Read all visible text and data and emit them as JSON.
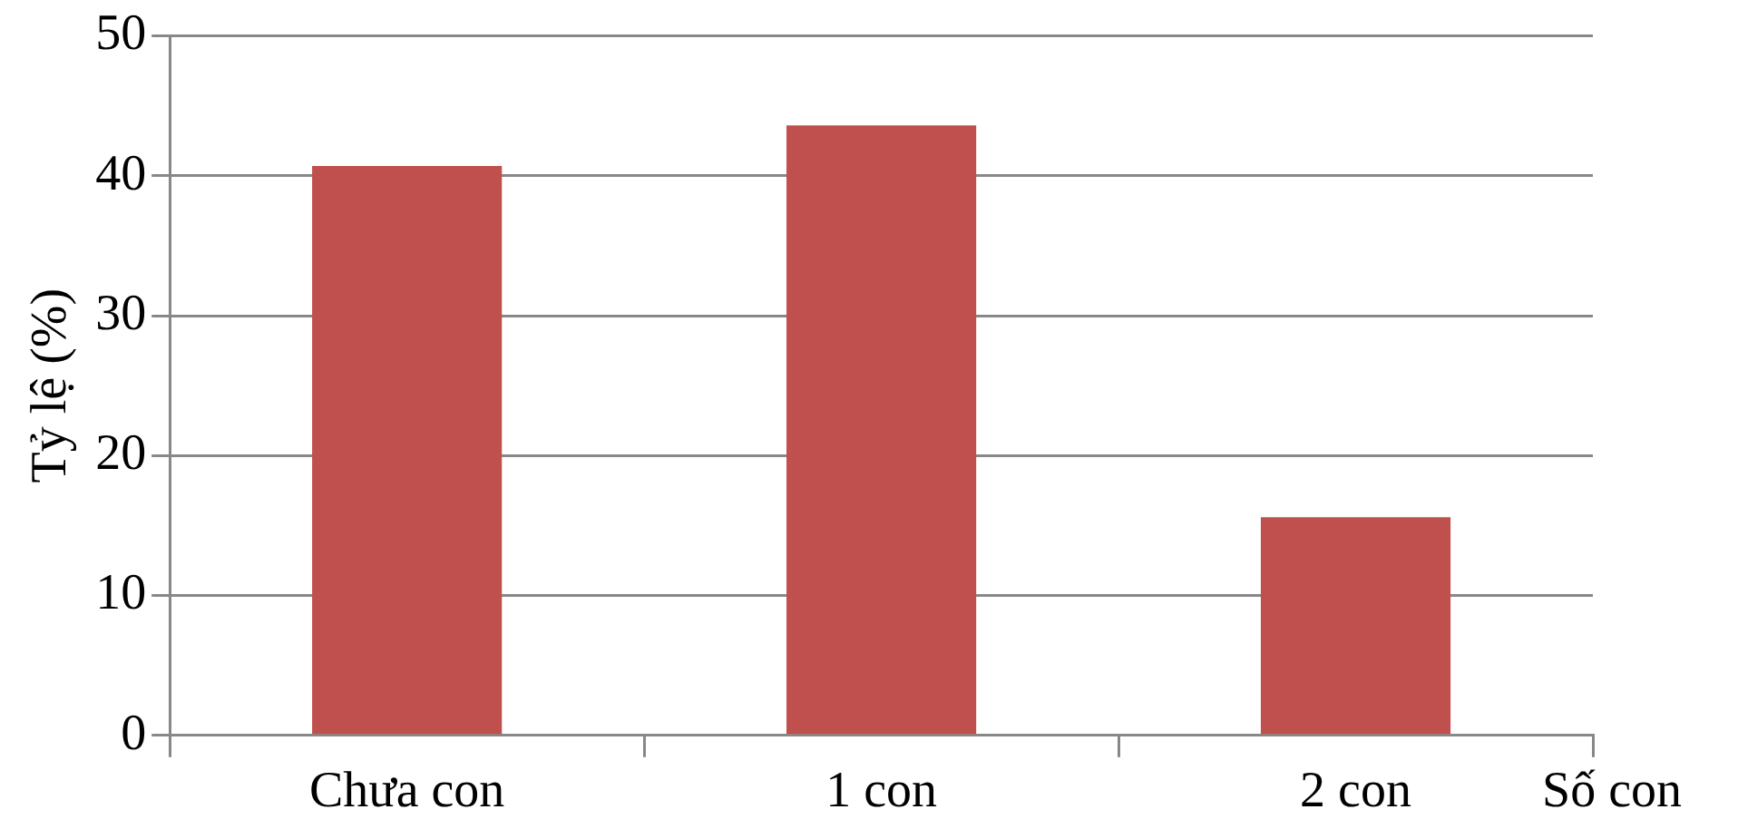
{
  "chart_data": {
    "type": "bar",
    "xlabel": "Số con",
    "ylabel": "Tỷ lệ (%)",
    "categories": [
      "Chưa con",
      "1 con",
      "2 con"
    ],
    "values": [
      40.7,
      43.6,
      15.6
    ],
    "color": "#c0504d",
    "ylim": [
      0,
      50
    ],
    "yticks": [
      0,
      10,
      20,
      30,
      40,
      50
    ],
    "grid": "y",
    "legend": false
  }
}
